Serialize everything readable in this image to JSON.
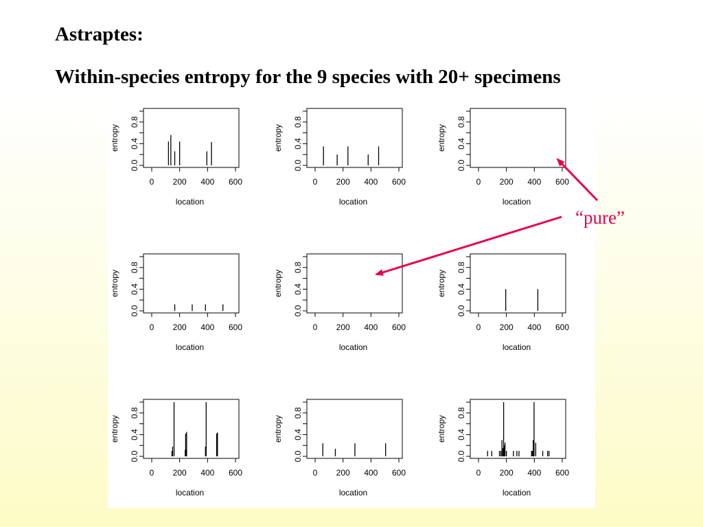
{
  "slide": {
    "title": "Astraptes:",
    "subtitle": "Within-species entropy for the 9 species with 20+ specimens",
    "annotation": "“pure”",
    "annotation_color": "#e8004a"
  },
  "chart_data": [
    {
      "type": "bar",
      "xlabel": "location",
      "ylabel": "entropy",
      "xlim": [
        0,
        600
      ],
      "ylim": [
        0,
        1
      ],
      "xticks": [
        "0",
        "200",
        "400",
        "600"
      ],
      "yticks": [
        "0.0",
        "0.4",
        "0.8"
      ],
      "x": [
        120,
        137,
        165,
        200,
        395,
        428
      ],
      "values": [
        0.44,
        0.56,
        0.26,
        0.44,
        0.26,
        0.43
      ]
    },
    {
      "type": "bar",
      "xlabel": "location",
      "ylabel": "entropy",
      "xlim": [
        0,
        600
      ],
      "ylim": [
        0,
        1
      ],
      "xticks": [
        "0",
        "200",
        "400",
        "600"
      ],
      "yticks": [
        "0.0",
        "0.4",
        "0.8"
      ],
      "x": [
        60,
        158,
        235,
        380,
        455
      ],
      "values": [
        0.35,
        0.2,
        0.35,
        0.2,
        0.35
      ]
    },
    {
      "type": "bar",
      "xlabel": "location",
      "ylabel": "entropy",
      "xlim": [
        0,
        600
      ],
      "ylim": [
        0,
        1
      ],
      "xticks": [
        "0",
        "200",
        "400",
        "600"
      ],
      "yticks": [
        "0.0",
        "0.4",
        "0.8"
      ],
      "x": [],
      "values": []
    },
    {
      "type": "bar",
      "xlabel": "location",
      "ylabel": "entropy",
      "xlim": [
        0,
        600
      ],
      "ylim": [
        0,
        1
      ],
      "xticks": [
        "0",
        "200",
        "400",
        "600"
      ],
      "yticks": [
        "0.0",
        "0.4",
        "0.8"
      ],
      "x": [
        165,
        290,
        385,
        510
      ],
      "values": [
        0.12,
        0.12,
        0.12,
        0.12
      ]
    },
    {
      "type": "bar",
      "xlabel": "location",
      "ylabel": "entropy",
      "xlim": [
        0,
        600
      ],
      "ylim": [
        0,
        1
      ],
      "xticks": [
        "0",
        "200",
        "400",
        "600"
      ],
      "yticks": [
        "0.0",
        "0.4",
        "0.8"
      ],
      "x": [],
      "values": []
    },
    {
      "type": "bar",
      "xlabel": "location",
      "ylabel": "entropy",
      "xlim": [
        0,
        600
      ],
      "ylim": [
        0,
        1
      ],
      "xticks": [
        "0",
        "200",
        "400",
        "600"
      ],
      "yticks": [
        "0.0",
        "0.4",
        "0.8"
      ],
      "x": [
        195,
        425
      ],
      "values": [
        0.4,
        0.4
      ]
    },
    {
      "type": "bar",
      "xlabel": "location",
      "ylabel": "entropy",
      "xlim": [
        0,
        600
      ],
      "ylim": [
        0,
        1
      ],
      "xticks": [
        "0",
        "200",
        "400",
        "600"
      ],
      "yticks": [
        "0.0",
        "0.4",
        "0.8"
      ],
      "x": [
        145,
        150,
        160,
        240,
        243,
        246,
        250,
        385,
        390,
        465,
        468,
        471
      ],
      "values": [
        0.1,
        0.18,
        1.0,
        0.12,
        0.42,
        0.12,
        0.45,
        0.18,
        1.0,
        0.42,
        0.42,
        0.44
      ]
    },
    {
      "type": "bar",
      "xlabel": "location",
      "ylabel": "entropy",
      "xlim": [
        0,
        600
      ],
      "ylim": [
        0,
        1
      ],
      "xticks": [
        "0",
        "200",
        "400",
        "600"
      ],
      "yticks": [
        "0.0",
        "0.4",
        "0.8"
      ],
      "x": [
        55,
        145,
        285,
        505
      ],
      "values": [
        0.24,
        0.14,
        0.24,
        0.24
      ]
    },
    {
      "type": "bar",
      "xlabel": "location",
      "ylabel": "entropy",
      "xlim": [
        0,
        600
      ],
      "ylim": [
        0,
        1
      ],
      "xticks": [
        "0",
        "200",
        "400",
        "600"
      ],
      "yticks": [
        "0.0",
        "0.4",
        "0.8"
      ],
      "x": [
        65,
        95,
        150,
        160,
        168,
        175,
        180,
        185,
        190,
        200,
        250,
        275,
        290,
        380,
        385,
        392,
        398,
        410,
        460,
        495,
        505
      ],
      "values": [
        0.1,
        0.1,
        0.1,
        0.1,
        0.3,
        0.15,
        1.0,
        0.2,
        0.25,
        0.1,
        0.1,
        0.1,
        0.1,
        0.1,
        0.1,
        0.3,
        1.0,
        0.25,
        0.1,
        0.1,
        0.1
      ]
    }
  ]
}
